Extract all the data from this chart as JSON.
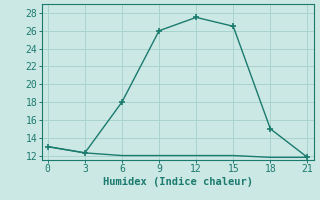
{
  "line1_x": [
    0,
    3,
    6,
    9,
    12,
    15,
    18,
    21
  ],
  "line1_y": [
    13,
    12.3,
    12,
    12,
    12,
    12,
    11.8,
    11.8
  ],
  "line2_x": [
    0,
    3,
    6,
    9,
    12,
    15,
    18,
    21
  ],
  "line2_y": [
    13,
    12.3,
    18,
    26,
    27.5,
    26.5,
    15,
    11.8
  ],
  "line_color": "#1a7a6e",
  "bg_color": "#cce8e4",
  "grid_color": "#a8d4ce",
  "xlabel": "Humidex (Indice chaleur)",
  "xlim": [
    -0.5,
    21.5
  ],
  "ylim": [
    11.5,
    29
  ],
  "xticks": [
    0,
    3,
    6,
    9,
    12,
    15,
    18,
    21
  ],
  "yticks": [
    12,
    14,
    16,
    18,
    20,
    22,
    24,
    26,
    28
  ],
  "marker": "+",
  "marker_size": 5,
  "linewidth": 1.0,
  "xlabel_fontsize": 7.5,
  "tick_fontsize": 7
}
